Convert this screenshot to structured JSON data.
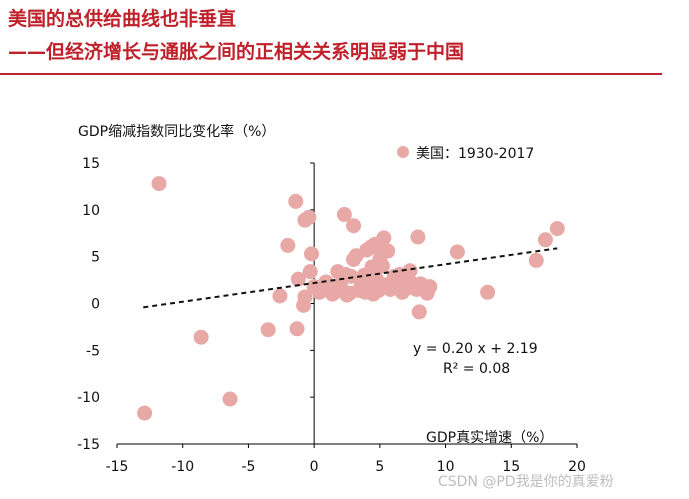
{
  "header": {
    "title_line1": "美国的总供给曲线也非垂直",
    "title_line2": "——但经济增长与通胀之间的正相关关系明显弱于中国"
  },
  "chart_data": {
    "type": "scatter",
    "ylabel": "GDP缩减指数同比变化率（%）",
    "xlabel": "GDP真实增速（%）",
    "legend": "美国：1930-2017",
    "legend_position": "top-right",
    "xlim": [
      -15,
      20
    ],
    "ylim": [
      -15,
      15
    ],
    "xticks": [
      "-15",
      "-10",
      "-5",
      "0",
      "5",
      "10",
      "15",
      "20"
    ],
    "yticks": [
      "15",
      "10",
      "5",
      "0",
      "-5",
      "-10",
      "-15"
    ],
    "equation": "y = 0.20 x + 2.19",
    "r_squared": "R² = 0.08",
    "trendline": {
      "slope": 0.2,
      "intercept": 2.19,
      "x_range": [
        -13,
        18.5
      ]
    },
    "point_color": "#e8a8a6",
    "points": [
      [
        -12.9,
        -11.7
      ],
      [
        -11.8,
        12.8
      ],
      [
        -8.6,
        -3.6
      ],
      [
        -6.4,
        -10.2
      ],
      [
        -3.5,
        -2.8
      ],
      [
        -2.6,
        0.8
      ],
      [
        -2.0,
        6.2
      ],
      [
        -1.4,
        10.9
      ],
      [
        -1.3,
        -2.7
      ],
      [
        -1.2,
        2.6
      ],
      [
        -0.8,
        -0.2
      ],
      [
        -0.7,
        0.7
      ],
      [
        -0.7,
        8.9
      ],
      [
        -0.4,
        9.2
      ],
      [
        -0.3,
        3.4
      ],
      [
        -0.2,
        5.3
      ],
      [
        0.0,
        1.8
      ],
      [
        0.4,
        1.2
      ],
      [
        0.9,
        2.3
      ],
      [
        1.4,
        1.0
      ],
      [
        1.6,
        1.7
      ],
      [
        1.8,
        3.4
      ],
      [
        2.0,
        2.0
      ],
      [
        2.2,
        1.3
      ],
      [
        2.3,
        9.5
      ],
      [
        2.4,
        3.1
      ],
      [
        2.5,
        0.9
      ],
      [
        2.7,
        1.1
      ],
      [
        2.8,
        2.9
      ],
      [
        3.0,
        8.3
      ],
      [
        3.0,
        4.7
      ],
      [
        3.2,
        5.1
      ],
      [
        3.4,
        1.4
      ],
      [
        3.6,
        2.3
      ],
      [
        3.8,
        3.0
      ],
      [
        3.9,
        1.2
      ],
      [
        4.0,
        5.7
      ],
      [
        4.2,
        1.6
      ],
      [
        4.3,
        6.0
      ],
      [
        4.4,
        3.9
      ],
      [
        4.5,
        1.0
      ],
      [
        4.6,
        6.3
      ],
      [
        4.7,
        2.7
      ],
      [
        4.8,
        2.4
      ],
      [
        4.9,
        1.4
      ],
      [
        5.0,
        4.7
      ],
      [
        5.1,
        5.4
      ],
      [
        5.2,
        4.0
      ],
      [
        5.3,
        7.0
      ],
      [
        5.4,
        2.0
      ],
      [
        5.6,
        5.6
      ],
      [
        5.8,
        1.5
      ],
      [
        6.1,
        2.9
      ],
      [
        6.3,
        1.8
      ],
      [
        6.5,
        3.1
      ],
      [
        6.7,
        1.2
      ],
      [
        7.0,
        1.6
      ],
      [
        7.1,
        2.4
      ],
      [
        7.3,
        3.5
      ],
      [
        7.4,
        2.2
      ],
      [
        7.6,
        1.8
      ],
      [
        7.8,
        1.5
      ],
      [
        7.9,
        7.1
      ],
      [
        8.0,
        -0.9
      ],
      [
        8.1,
        2.1
      ],
      [
        8.3,
        1.9
      ],
      [
        8.6,
        1.1
      ],
      [
        8.8,
        1.8
      ],
      [
        10.9,
        5.5
      ],
      [
        13.2,
        1.2
      ],
      [
        16.9,
        4.6
      ],
      [
        17.6,
        6.8
      ],
      [
        18.5,
        8.0
      ]
    ]
  },
  "watermark": "CSDN @PD我是你的真爱粉"
}
